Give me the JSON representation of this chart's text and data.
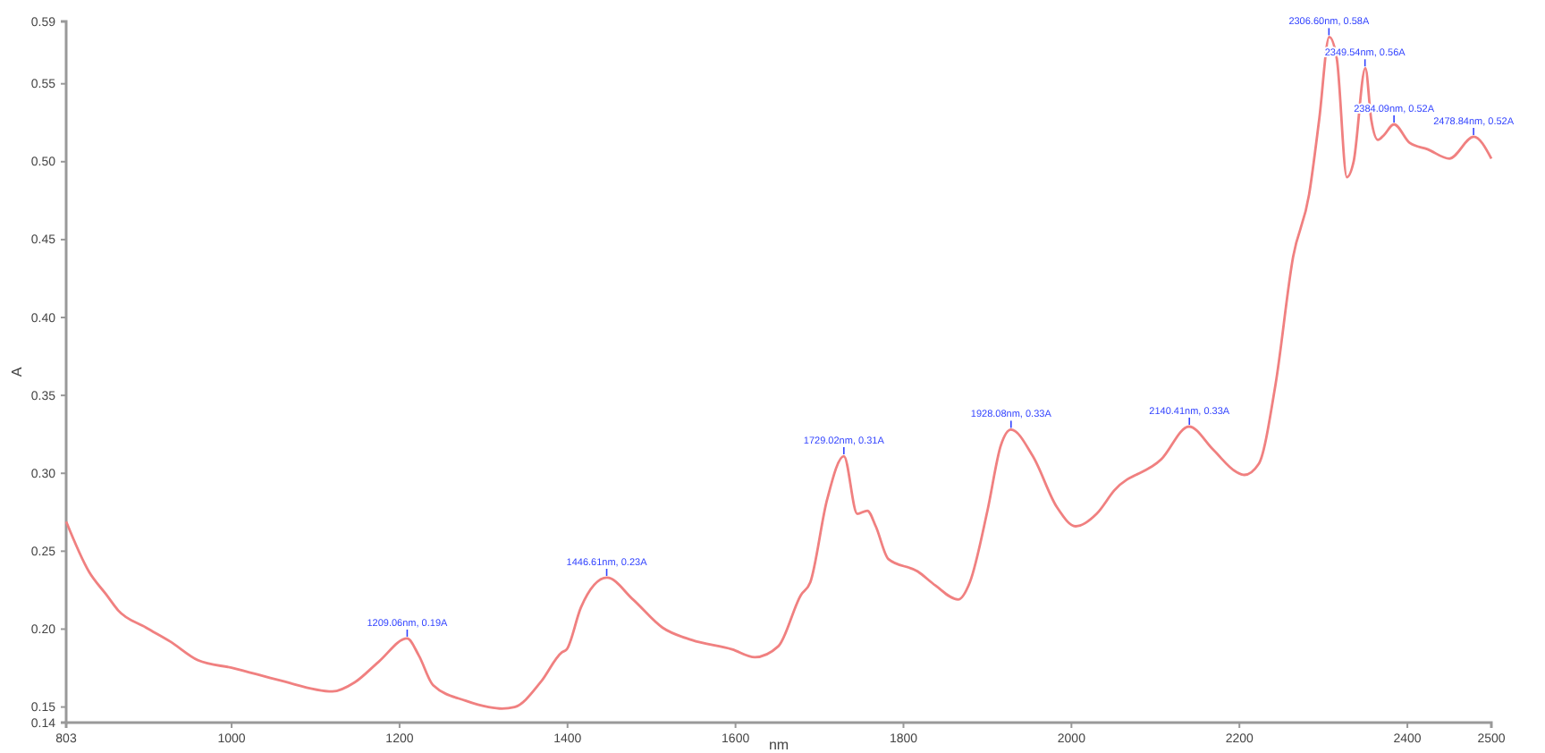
{
  "chart_data": {
    "type": "line",
    "xlabel": "nm",
    "ylabel": "A",
    "xlim": [
      803,
      2500
    ],
    "xticks": [
      803,
      1000,
      1200,
      1400,
      1600,
      1800,
      2000,
      2200,
      2400,
      2500
    ],
    "ylim": [
      0.14,
      0.59
    ],
    "yticks": [
      0.14,
      0.15,
      {
        "value": 0.2,
        "label": "0.20"
      },
      0.25,
      {
        "value": 0.3,
        "label": "0.30"
      },
      0.35,
      {
        "value": 0.4,
        "label": "0.40"
      },
      0.45,
      {
        "value": 0.5,
        "label": "0.50"
      },
      0.55,
      0.59
    ],
    "grid": false,
    "marker": "none",
    "line_style": "solid",
    "x": [
      803,
      830,
      851,
      865,
      898,
      927,
      960,
      1002,
      1058,
      1120,
      1147,
      1175,
      1209,
      1223,
      1240,
      1279,
      1306,
      1322,
      1337,
      1368,
      1393,
      1399,
      1416,
      1447,
      1478,
      1513,
      1548,
      1596,
      1623,
      1651,
      1678,
      1689,
      1709,
      1729,
      1745,
      1757,
      1767,
      1782,
      1817,
      1838,
      1865,
      1879,
      1900,
      1916,
      1928,
      1954,
      1983,
      2005,
      2030,
      2051,
      2107,
      2140,
      2169,
      2196,
      2206,
      2223,
      2243,
      2264,
      2283,
      2295,
      2307,
      2316,
      2328,
      2336,
      2350,
      2357,
      2365,
      2372,
      2384,
      2403,
      2424,
      2450,
      2479,
      2500
    ],
    "series": [
      {
        "color": "#f08080",
        "values": [
          0.269,
          0.237,
          0.222,
          0.212,
          0.201,
          0.192,
          0.18,
          0.175,
          0.167,
          0.16,
          0.166,
          0.179,
          0.194,
          0.183,
          0.164,
          0.154,
          0.15,
          0.149,
          0.15,
          0.166,
          0.185,
          0.187,
          0.214,
          0.233,
          0.219,
          0.201,
          0.193,
          0.187,
          0.182,
          0.189,
          0.222,
          0.23,
          0.283,
          0.311,
          0.274,
          0.276,
          0.266,
          0.245,
          0.237,
          0.228,
          0.219,
          0.23,
          0.276,
          0.318,
          0.328,
          0.311,
          0.278,
          0.266,
          0.274,
          0.289,
          0.309,
          0.33,
          0.315,
          0.301,
          0.299,
          0.306,
          0.357,
          0.439,
          0.479,
          0.527,
          0.58,
          0.566,
          0.49,
          0.5,
          0.56,
          0.527,
          0.514,
          0.517,
          0.524,
          0.512,
          0.508,
          0.502,
          0.516,
          0.502
        ]
      }
    ],
    "annotations": [
      {
        "text": "1209.06nm, 0.19A",
        "x": 1209.06,
        "y": 0.194
      },
      {
        "text": "1446.61nm, 0.23A",
        "x": 1446.61,
        "y": 0.233
      },
      {
        "text": "1729.02nm, 0.31A",
        "x": 1729.02,
        "y": 0.311
      },
      {
        "text": "1928.08nm, 0.33A",
        "x": 1928.08,
        "y": 0.328
      },
      {
        "text": "2140.41nm, 0.33A",
        "x": 2140.41,
        "y": 0.33
      },
      {
        "text": "2306.60nm, 0.58A",
        "x": 2306.6,
        "y": 0.58
      },
      {
        "text": "2349.54nm, 0.56A",
        "x": 2349.54,
        "y": 0.56
      },
      {
        "text": "2384.09nm, 0.52A",
        "x": 2384.09,
        "y": 0.524
      },
      {
        "text": "2478.84nm, 0.52A",
        "x": 2478.84,
        "y": 0.516
      }
    ]
  }
}
